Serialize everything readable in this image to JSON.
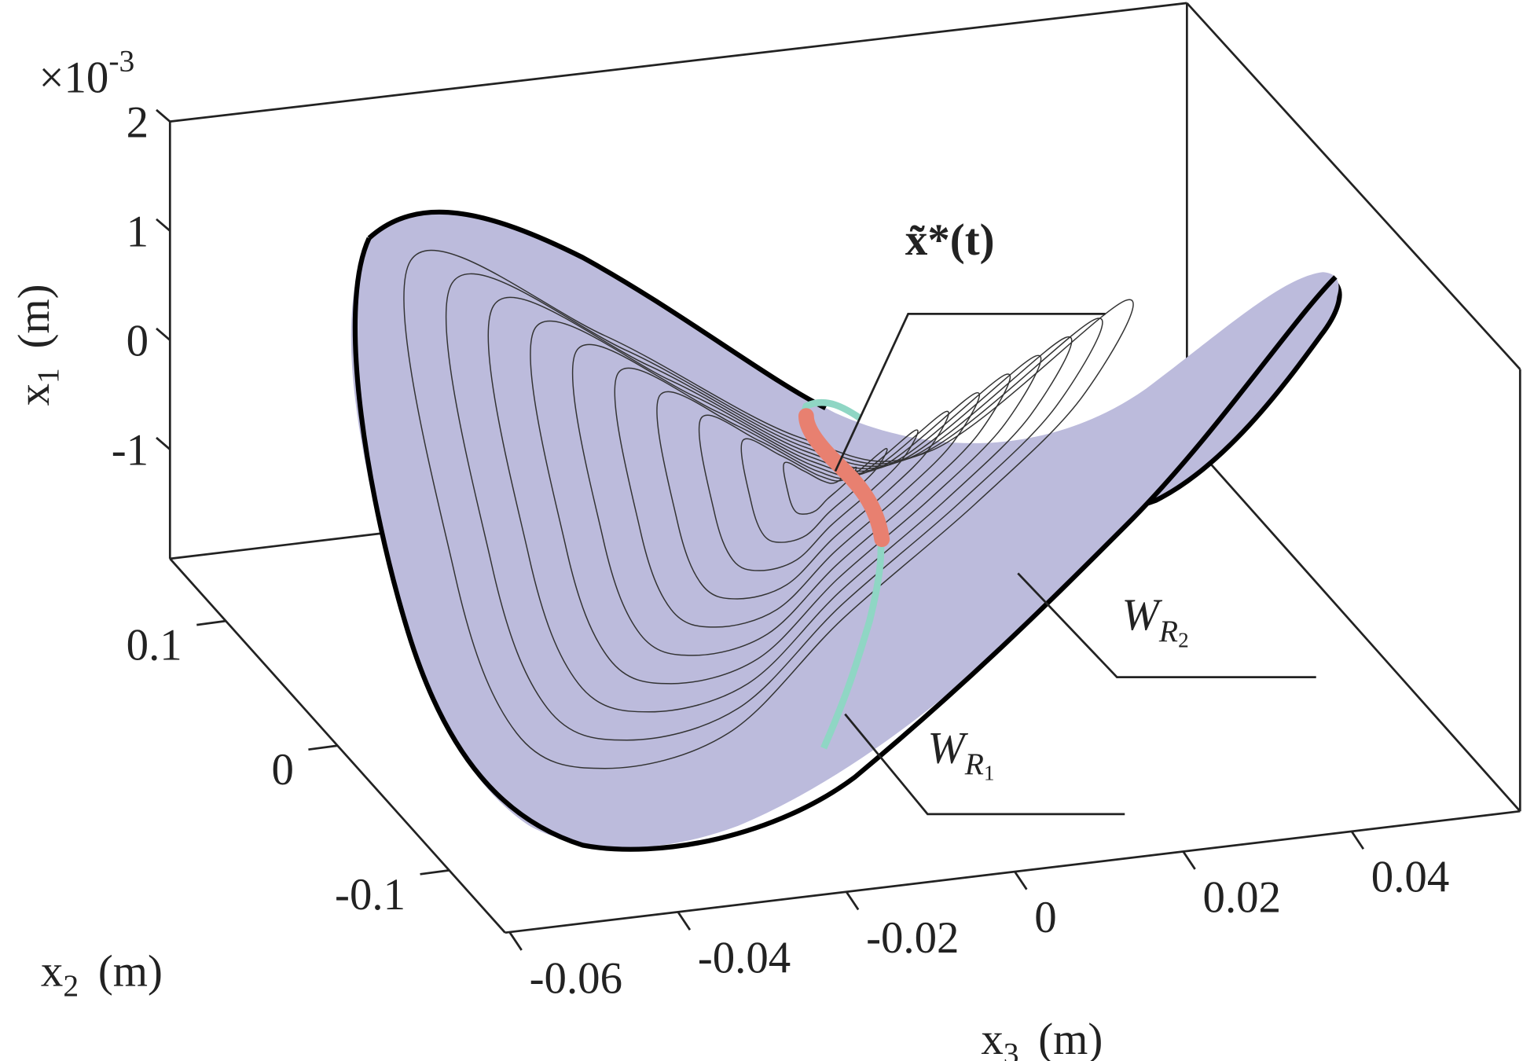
{
  "chart_data": {
    "type": "surface3d",
    "surface_color": "#bcbbdc",
    "trajectory_color": "#8fd6c4",
    "highlight_color": "#e88070",
    "zaxis": {
      "symbol": "x",
      "subscript": "1",
      "unit": "(m)",
      "multiplier": "×10",
      "exponent": "-3",
      "lim": [
        -2,
        2
      ],
      "ticks": [
        -1,
        0,
        1,
        2
      ]
    },
    "yaxis": {
      "symbol": "x",
      "subscript": "2",
      "unit": "(m)",
      "lim": [
        -0.15,
        0.15
      ],
      "ticks": [
        -0.1,
        0,
        0.1
      ]
    },
    "xaxis": {
      "symbol": "x",
      "subscript": "3",
      "unit": "(m)",
      "lim": [
        -0.06,
        0.06
      ],
      "ticks": [
        -0.06,
        -0.04,
        -0.02,
        0,
        0.02,
        0.04
      ]
    },
    "annotations": [
      {
        "text": "x̃*(t)"
      },
      {
        "text": "W",
        "subscript": "R",
        "index": "2"
      },
      {
        "text": "W",
        "subscript": "R",
        "index": "1"
      }
    ]
  }
}
